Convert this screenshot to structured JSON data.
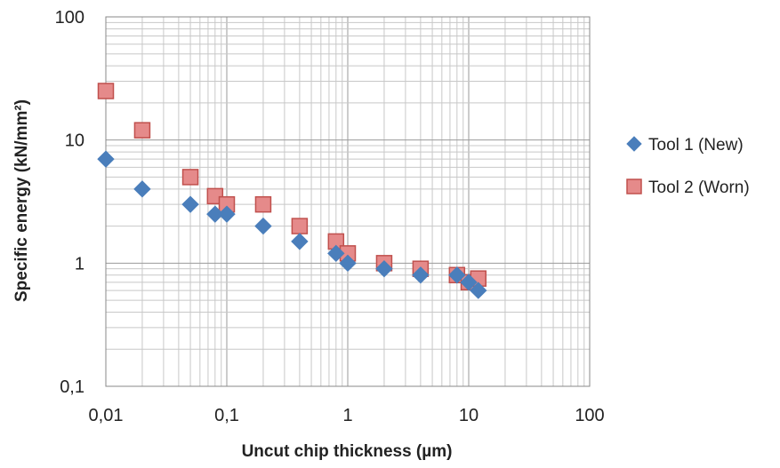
{
  "chart_data": {
    "type": "scatter",
    "title": "",
    "xlabel": "Uncut chip thickness (µm)",
    "ylabel": "Specific energy (kN/mm²)",
    "xscale": "log",
    "yscale": "log",
    "xlim": [
      0.01,
      100
    ],
    "ylim": [
      0.1,
      100
    ],
    "x_ticks": [
      "0,01",
      "0,1",
      "1",
      "10",
      "100"
    ],
    "y_ticks": [
      "100",
      "10",
      "1",
      "0,1"
    ],
    "grid": "major and minor",
    "legend_position": "right",
    "series": [
      {
        "name": "Tool 1 (New)",
        "marker": "diamond",
        "color": "#4a7ebb",
        "points": [
          {
            "x": 0.01,
            "y": 7.0
          },
          {
            "x": 0.02,
            "y": 4.0
          },
          {
            "x": 0.05,
            "y": 3.0
          },
          {
            "x": 0.08,
            "y": 2.5
          },
          {
            "x": 0.1,
            "y": 2.5
          },
          {
            "x": 0.2,
            "y": 2.0
          },
          {
            "x": 0.4,
            "y": 1.5
          },
          {
            "x": 0.8,
            "y": 1.2
          },
          {
            "x": 1.0,
            "y": 1.0
          },
          {
            "x": 2.0,
            "y": 0.9
          },
          {
            "x": 4.0,
            "y": 0.8
          },
          {
            "x": 8.0,
            "y": 0.8
          },
          {
            "x": 10.0,
            "y": 0.7
          },
          {
            "x": 12.0,
            "y": 0.6
          }
        ]
      },
      {
        "name": "Tool 2 (Worn)",
        "marker": "square",
        "color": "#e58a8a",
        "stroke": "#c0504d",
        "points": [
          {
            "x": 0.01,
            "y": 25.0
          },
          {
            "x": 0.02,
            "y": 12.0
          },
          {
            "x": 0.05,
            "y": 5.0
          },
          {
            "x": 0.08,
            "y": 3.5
          },
          {
            "x": 0.1,
            "y": 3.0
          },
          {
            "x": 0.2,
            "y": 3.0
          },
          {
            "x": 0.4,
            "y": 2.0
          },
          {
            "x": 0.8,
            "y": 1.5
          },
          {
            "x": 1.0,
            "y": 1.2
          },
          {
            "x": 2.0,
            "y": 1.0
          },
          {
            "x": 4.0,
            "y": 0.9
          },
          {
            "x": 8.0,
            "y": 0.8
          },
          {
            "x": 10.0,
            "y": 0.7
          },
          {
            "x": 12.0,
            "y": 0.75
          }
        ]
      }
    ]
  }
}
